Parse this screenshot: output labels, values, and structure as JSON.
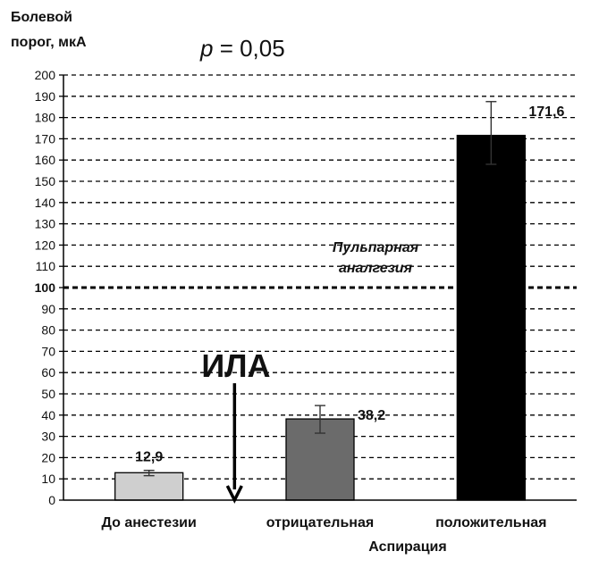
{
  "chart_data": {
    "type": "bar",
    "ylabel_lines": [
      "Болевой",
      "порог, мкА"
    ],
    "xlabel": "Аспирация",
    "p_value": {
      "italic": "p",
      "rest": " = 0,05"
    },
    "categories": [
      "До анестезии",
      "отрицательная",
      "положительная"
    ],
    "values": [
      12.9,
      38.2,
      171.6
    ],
    "value_labels": [
      "12,9",
      "38,2",
      "171,6"
    ],
    "error_low": [
      11.5,
      31.5,
      158.0
    ],
    "error_high": [
      14.0,
      44.5,
      187.5
    ],
    "bar_colors": [
      "#cfcfcf",
      "#6b6b6b",
      "#000000"
    ],
    "ylim": [
      0,
      200
    ],
    "y_ticks": [
      0,
      10,
      20,
      30,
      40,
      50,
      60,
      70,
      80,
      90,
      100,
      110,
      120,
      130,
      140,
      150,
      160,
      170,
      180,
      190,
      200
    ],
    "y_tick_labels": [
      "0",
      "10",
      "20",
      "30",
      "40",
      "50",
      "60",
      "70",
      "80",
      "90",
      "100",
      "110",
      "120",
      "130",
      "140",
      "150",
      "160",
      "170",
      "180",
      "190",
      "200"
    ],
    "grid": "dashed horizontal",
    "threshold": {
      "value": 100,
      "label_lines": [
        "Пульпарная",
        "аналгезия"
      ]
    },
    "annotation": {
      "text": "ИЛА",
      "arrow_from": 55,
      "arrow_to": 0
    }
  }
}
